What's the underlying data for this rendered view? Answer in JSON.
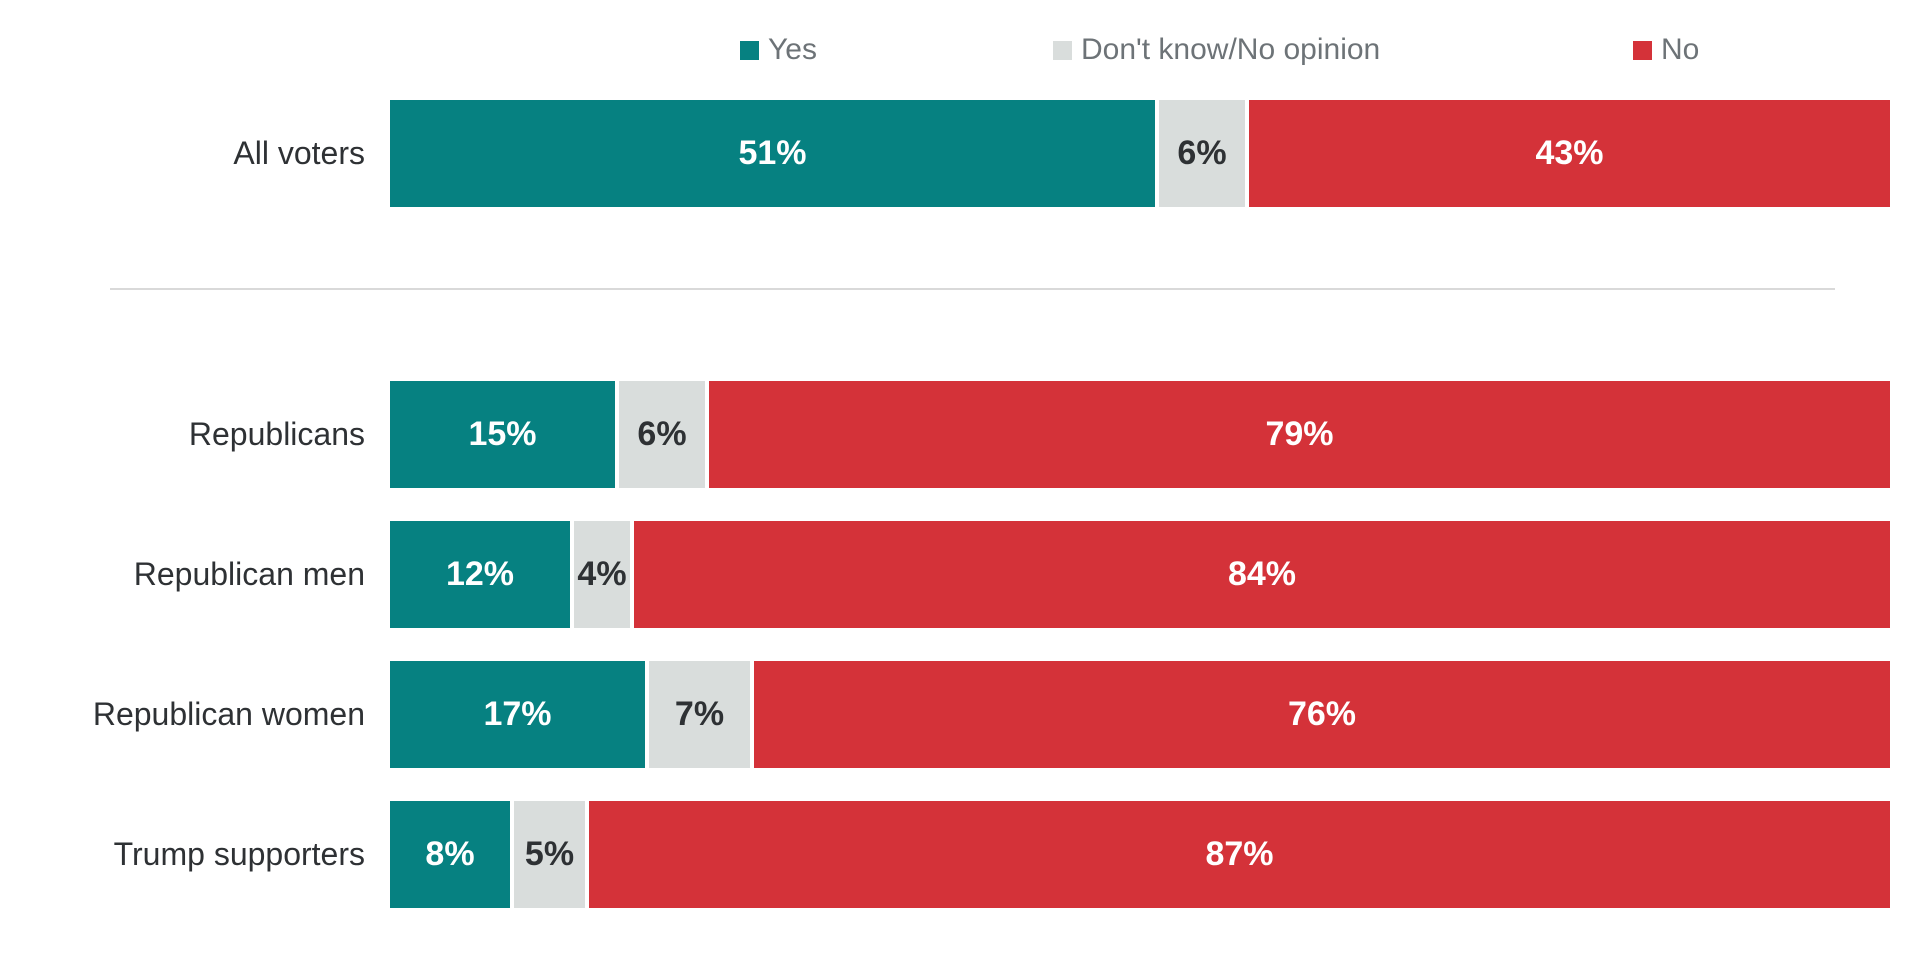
{
  "chart_data": {
    "type": "bar",
    "orientation": "horizontal",
    "stacked": true,
    "title": "",
    "xlabel": "",
    "ylabel": "",
    "xlim": [
      0,
      100
    ],
    "value_format": "percent",
    "grid": false,
    "legend_position": "top",
    "categories": [
      "All voters",
      "Republicans",
      "Republican men",
      "Republican women",
      "Trump supporters"
    ],
    "series": [
      {
        "name": "Yes",
        "color": "#068181",
        "values": [
          51,
          15,
          12,
          17,
          8
        ]
      },
      {
        "name": "Don't know/No opinion",
        "color": "#d9dddc",
        "values": [
          6,
          6,
          4,
          7,
          5
        ]
      },
      {
        "name": "No",
        "color": "#d43239",
        "values": [
          43,
          79,
          84,
          76,
          87
        ]
      }
    ],
    "groups": [
      {
        "rows": [
          "All voters"
        ]
      },
      {
        "rows": [
          "Republicans",
          "Republican men",
          "Republican women",
          "Trump supporters"
        ]
      }
    ]
  },
  "legend": {
    "items": [
      {
        "label": "Yes",
        "color": "#068181"
      },
      {
        "label": "Don't know/No opinion",
        "color": "#d9dddc"
      },
      {
        "label": "No",
        "color": "#d43239"
      }
    ]
  },
  "rows": [
    {
      "label": "All voters",
      "segments": [
        {
          "series": "Yes",
          "value": 51,
          "text": "51%"
        },
        {
          "series": "Don't know/No opinion",
          "value": 6,
          "text": "6%"
        },
        {
          "series": "No",
          "value": 43,
          "text": "43%"
        }
      ]
    },
    {
      "label": "Republicans",
      "segments": [
        {
          "series": "Yes",
          "value": 15,
          "text": "15%"
        },
        {
          "series": "Don't know/No opinion",
          "value": 6,
          "text": "6%"
        },
        {
          "series": "No",
          "value": 79,
          "text": "79%"
        }
      ]
    },
    {
      "label": "Republican men",
      "segments": [
        {
          "series": "Yes",
          "value": 12,
          "text": "12%"
        },
        {
          "series": "Don't know/No opinion",
          "value": 4,
          "text": "4%"
        },
        {
          "series": "No",
          "value": 84,
          "text": "84%"
        }
      ]
    },
    {
      "label": "Republican women",
      "segments": [
        {
          "series": "Yes",
          "value": 17,
          "text": "17%"
        },
        {
          "series": "Don't know/No opinion",
          "value": 7,
          "text": "7%"
        },
        {
          "series": "No",
          "value": 76,
          "text": "76%"
        }
      ]
    },
    {
      "label": "Trump supporters",
      "segments": [
        {
          "series": "Yes",
          "value": 8,
          "text": "8%"
        },
        {
          "series": "Don't know/No opinion",
          "value": 5,
          "text": "5%"
        },
        {
          "series": "No",
          "value": 87,
          "text": "87%"
        }
      ]
    }
  ],
  "colors": {
    "yes": "#068181",
    "dont_know": "#d9dddc",
    "no": "#d43239",
    "row_label_text": "#2e3134",
    "legend_text": "#6d7377",
    "divider": "#d9d9d9",
    "value_text_on_color": "#ffffff",
    "value_text_on_gray": "#2e3134",
    "background": "#ffffff"
  }
}
